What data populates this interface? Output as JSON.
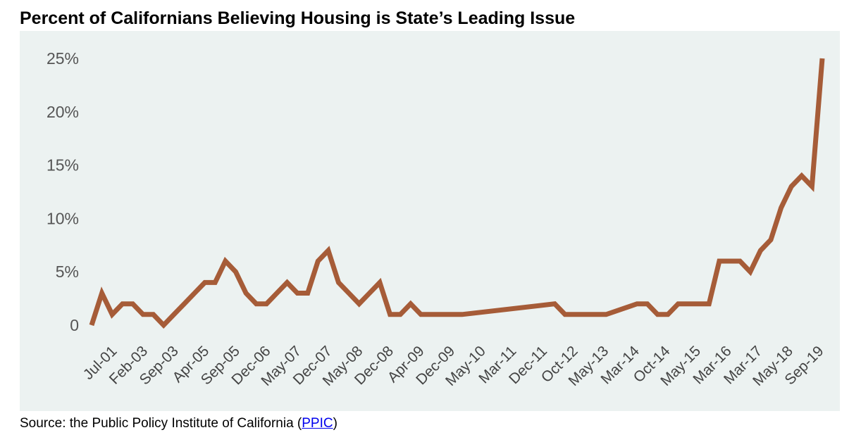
{
  "chart_data": {
    "type": "line",
    "title": "Percent of Californians Believing Housing is State’s Leading Issue",
    "xlabel": "",
    "ylabel": "",
    "ylim": [
      0,
      25
    ],
    "y_ticks": [
      0,
      5,
      10,
      15,
      20,
      25
    ],
    "y_tick_labels": [
      "0",
      "5%",
      "10%",
      "15%",
      "20%",
      "25%"
    ],
    "x_tick_labels": [
      "Jul-01",
      "Feb-03",
      "Sep-03",
      "Apr-05",
      "Sep-05",
      "Dec-06",
      "May-07",
      "Dec-07",
      "May-08",
      "Dec-08",
      "Apr-09",
      "Dec-09",
      "May-10",
      "Mar-11",
      "Dec-11",
      "Oct-12",
      "May-13",
      "Mar-14",
      "Oct-14",
      "May-15",
      "Mar-16",
      "Mar-17",
      "May-18",
      "Sep-19"
    ],
    "grid": false,
    "legend": "none",
    "line_color": "#a65c38",
    "background_color": "#ecf2f1",
    "series": [
      {
        "points": [
          [
            0,
            0
          ],
          [
            1,
            3
          ],
          [
            2,
            1
          ],
          [
            3,
            2
          ],
          [
            4,
            2
          ],
          [
            5,
            1
          ],
          [
            6,
            1
          ],
          [
            7,
            0
          ],
          [
            8,
            1
          ],
          [
            9,
            2
          ],
          [
            10,
            3
          ],
          [
            11,
            4
          ],
          [
            12,
            4
          ],
          [
            13,
            6
          ],
          [
            14,
            5
          ],
          [
            15,
            3
          ],
          [
            16,
            2
          ],
          [
            17,
            2
          ],
          [
            18,
            3
          ],
          [
            19,
            4
          ],
          [
            20,
            3
          ],
          [
            21,
            3
          ],
          [
            22,
            6
          ],
          [
            23,
            7
          ],
          [
            24,
            4
          ],
          [
            25,
            3
          ],
          [
            26,
            2
          ],
          [
            27,
            3
          ],
          [
            28,
            4
          ],
          [
            29,
            1
          ],
          [
            30,
            1
          ],
          [
            31,
            2
          ],
          [
            32,
            1
          ],
          [
            33,
            1
          ],
          [
            34,
            1
          ],
          [
            35,
            1
          ],
          [
            36,
            1
          ],
          [
            45,
            2
          ],
          [
            46,
            1
          ],
          [
            47,
            1
          ],
          [
            48,
            1
          ],
          [
            49,
            1
          ],
          [
            50,
            1
          ],
          [
            53,
            2
          ],
          [
            54,
            2
          ],
          [
            55,
            1
          ],
          [
            56,
            1
          ],
          [
            57,
            2
          ],
          [
            58,
            2
          ],
          [
            59,
            2
          ],
          [
            60,
            2
          ],
          [
            61,
            6
          ],
          [
            62,
            6
          ],
          [
            63,
            6
          ],
          [
            64,
            5
          ],
          [
            65,
            7
          ],
          [
            66,
            8
          ],
          [
            67,
            11
          ],
          [
            68,
            13
          ],
          [
            69,
            14
          ],
          [
            70,
            13
          ],
          [
            71,
            25
          ]
        ]
      }
    ]
  },
  "source": {
    "prefix": "Source: the Public Policy Institute of California (",
    "link": "PPIC",
    "suffix": ")"
  }
}
